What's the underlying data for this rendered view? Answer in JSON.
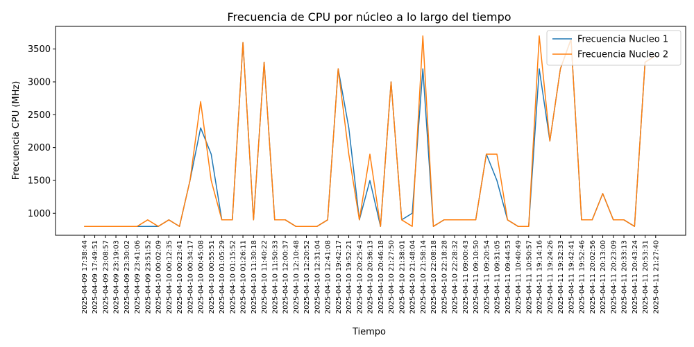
{
  "chart_data": {
    "type": "line",
    "title": "Frecuencia de CPU por núcleo a lo largo del tiempo",
    "xlabel": "Tiempo",
    "ylabel": "Frecuencia CPU (MHz)",
    "ylim": [
      665,
      3845
    ],
    "yticks": [
      1000,
      1500,
      2000,
      2500,
      3000,
      3500
    ],
    "grid": false,
    "legend_position": "top-right",
    "x": [
      "2025-04-09 17:38:44",
      "2025-04-09 17:49:51",
      "2025-04-09 23:08:57",
      "2025-04-09 23:19:03",
      "2025-04-09 23:30:02",
      "2025-04-09 23:41:06",
      "2025-04-09 23:51:52",
      "2025-04-10 00:02:09",
      "2025-04-10 00:12:35",
      "2025-04-10 00:23:41",
      "2025-04-10 00:34:17",
      "2025-04-10 00:45:08",
      "2025-04-10 00:55:51",
      "2025-04-10 01:05:29",
      "2025-04-10 01:15:52",
      "2025-04-10 01:26:11",
      "2025-04-10 11:30:18",
      "2025-04-10 11:40:22",
      "2025-04-10 11:50:33",
      "2025-04-10 12:00:37",
      "2025-04-10 12:10:48",
      "2025-04-10 12:20:52",
      "2025-04-10 12:31:04",
      "2025-04-10 12:41:08",
      "2025-04-10 19:42:17",
      "2025-04-10 19:52:21",
      "2025-04-10 20:25:43",
      "2025-04-10 20:36:13",
      "2025-04-10 20:46:18",
      "2025-04-10 21:27:50",
      "2025-04-10 21:38:01",
      "2025-04-10 21:48:04",
      "2025-04-10 21:58:14",
      "2025-04-10 22:08:18",
      "2025-04-10 22:18:28",
      "2025-04-10 22:28:32",
      "2025-04-11 09:00:43",
      "2025-04-11 09:10:50",
      "2025-04-11 09:20:54",
      "2025-04-11 09:31:05",
      "2025-04-11 09:44:53",
      "2025-04-11 10:40:49",
      "2025-04-11 10:50:57",
      "2025-04-11 19:14:16",
      "2025-04-11 19:24:26",
      "2025-04-11 19:32:33",
      "2025-04-11 19:42:41",
      "2025-04-11 19:52:46",
      "2025-04-11 20:02:56",
      "2025-04-11 20:13:00",
      "2025-04-11 20:23:09",
      "2025-04-11 20:33:13",
      "2025-04-11 20:43:24",
      "2025-04-11 20:53:31",
      "2025-04-11 21:27:40"
    ],
    "series": [
      {
        "name": "Frecuencia Nucleo 1",
        "color": "#1f77b4",
        "values": [
          800,
          800,
          800,
          800,
          800,
          800,
          800,
          800,
          900,
          800,
          1500,
          2300,
          1900,
          900,
          900,
          3600,
          900,
          3300,
          900,
          900,
          800,
          800,
          800,
          900,
          3200,
          2300,
          900,
          1500,
          800,
          3000,
          900,
          1000,
          3200,
          800,
          900,
          900,
          900,
          900,
          1900,
          1500,
          900,
          800,
          800,
          3200,
          2100,
          3200,
          3650,
          900,
          900,
          1300,
          900,
          900,
          800,
          3300,
          3400
        ]
      },
      {
        "name": "Frecuencia Nucleo 2",
        "color": "#ff7f0e",
        "values": [
          800,
          800,
          800,
          800,
          800,
          800,
          900,
          800,
          900,
          800,
          1500,
          2700,
          1500,
          900,
          900,
          3600,
          900,
          3300,
          900,
          900,
          800,
          800,
          800,
          900,
          3200,
          1900,
          900,
          1900,
          800,
          3000,
          900,
          800,
          3700,
          800,
          900,
          900,
          900,
          900,
          1900,
          1900,
          900,
          800,
          800,
          3700,
          2100,
          3200,
          3650,
          900,
          900,
          1300,
          900,
          900,
          800,
          3300,
          3400
        ]
      }
    ]
  }
}
